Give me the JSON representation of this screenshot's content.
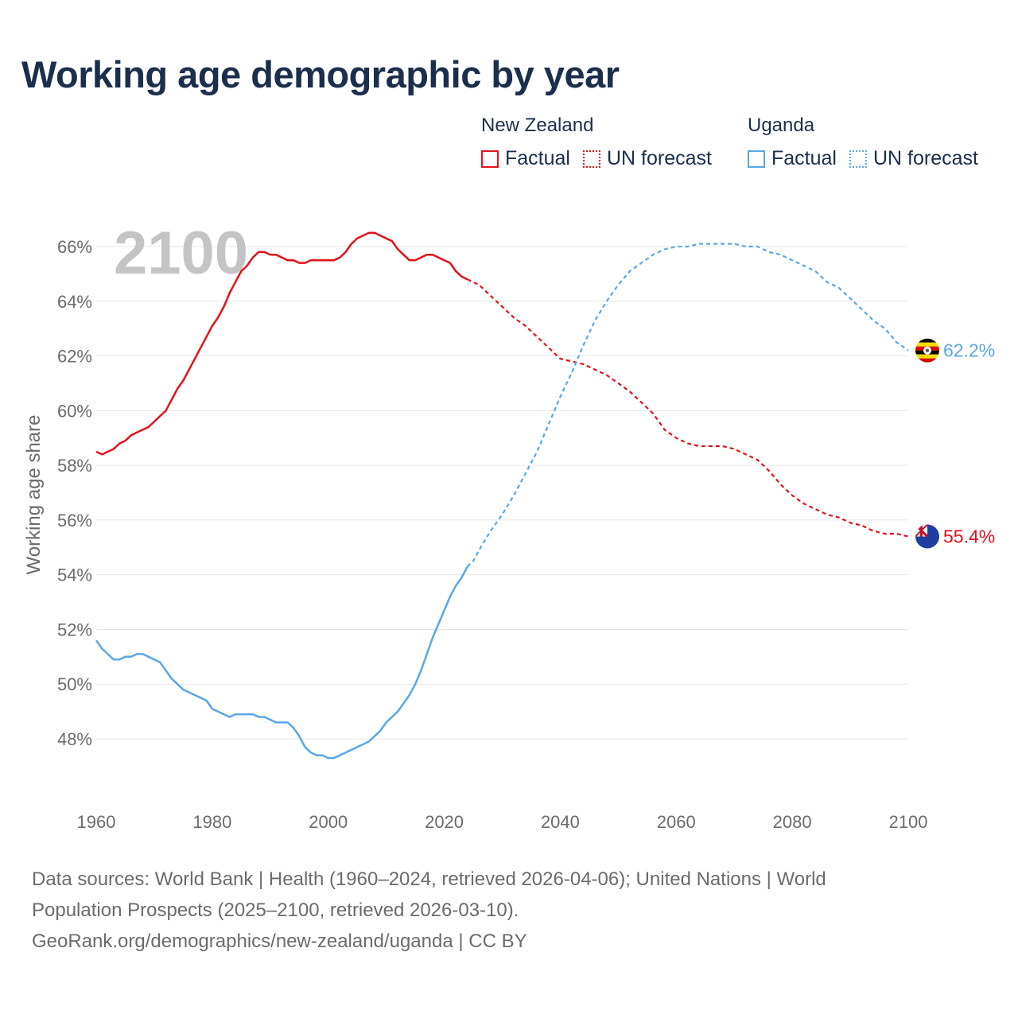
{
  "title": "Working age demographic by year",
  "legend": {
    "groups": [
      {
        "name": "New Zealand",
        "color": "#e3101a",
        "items": [
          "Factual",
          "UN forecast"
        ]
      },
      {
        "name": "Uganda",
        "color": "#5aa6e6",
        "items": [
          "Factual",
          "UN forecast"
        ]
      }
    ]
  },
  "colors": {
    "new_zealand": "#e3101a",
    "uganda": "#5aa6e6",
    "year_label": "#c4c4c4",
    "grid": "#e6e6e6",
    "axis_text": "#6b6b6b"
  },
  "footer": {
    "line1": "Data sources: World Bank | Health (1960–2024, retrieved 2026-04-06); United Nations | World",
    "line2": "Population Prospects (2025–2100, retrieved 2026-03-10).",
    "line3": "GeoRank.org/demographics/new-zealand/uganda | CC BY"
  },
  "chart_data": {
    "type": "line",
    "current_year_label": "2100",
    "ylabel": "Working age share",
    "xlim": [
      1960,
      2100
    ],
    "ylim": [
      46,
      67
    ],
    "x_ticks": [
      "1960",
      "1980",
      "2000",
      "2020",
      "2040",
      "2060",
      "2080",
      "2100"
    ],
    "y_ticks": [
      "48%",
      "50%",
      "52%",
      "54%",
      "56%",
      "58%",
      "60%",
      "62%",
      "64%",
      "66%"
    ],
    "grid": true,
    "factual_end_year": 2024,
    "series": [
      {
        "name": "New Zealand",
        "flag": "new-zealand-flag-icon",
        "end_label": "55.4%",
        "points": [
          [
            1960,
            58.5
          ],
          [
            1961,
            58.4
          ],
          [
            1962,
            58.5
          ],
          [
            1963,
            58.6
          ],
          [
            1964,
            58.8
          ],
          [
            1965,
            58.9
          ],
          [
            1966,
            59.1
          ],
          [
            1968,
            59.3
          ],
          [
            1969,
            59.4
          ],
          [
            1970,
            59.6
          ],
          [
            1972,
            60.0
          ],
          [
            1973,
            60.4
          ],
          [
            1974,
            60.8
          ],
          [
            1975,
            61.1
          ],
          [
            1976,
            61.5
          ],
          [
            1978,
            62.3
          ],
          [
            1980,
            63.1
          ],
          [
            1981,
            63.4
          ],
          [
            1982,
            63.8
          ],
          [
            1983,
            64.3
          ],
          [
            1984,
            64.7
          ],
          [
            1985,
            65.1
          ],
          [
            1986,
            65.3
          ],
          [
            1987,
            65.6
          ],
          [
            1988,
            65.8
          ],
          [
            1989,
            65.8
          ],
          [
            1990,
            65.7
          ],
          [
            1991,
            65.7
          ],
          [
            1992,
            65.6
          ],
          [
            1993,
            65.5
          ],
          [
            1994,
            65.5
          ],
          [
            1995,
            65.4
          ],
          [
            1996,
            65.4
          ],
          [
            1997,
            65.5
          ],
          [
            1998,
            65.5
          ],
          [
            1999,
            65.5
          ],
          [
            2000,
            65.5
          ],
          [
            2001,
            65.5
          ],
          [
            2002,
            65.6
          ],
          [
            2003,
            65.8
          ],
          [
            2004,
            66.1
          ],
          [
            2005,
            66.3
          ],
          [
            2006,
            66.4
          ],
          [
            2007,
            66.5
          ],
          [
            2008,
            66.5
          ],
          [
            2009,
            66.4
          ],
          [
            2010,
            66.3
          ],
          [
            2011,
            66.2
          ],
          [
            2012,
            65.9
          ],
          [
            2013,
            65.7
          ],
          [
            2014,
            65.5
          ],
          [
            2015,
            65.5
          ],
          [
            2016,
            65.6
          ],
          [
            2017,
            65.7
          ],
          [
            2018,
            65.7
          ],
          [
            2019,
            65.6
          ],
          [
            2020,
            65.5
          ],
          [
            2021,
            65.4
          ],
          [
            2022,
            65.1
          ],
          [
            2023,
            64.9
          ],
          [
            2024,
            64.8
          ],
          [
            2025,
            64.7
          ],
          [
            2026,
            64.6
          ],
          [
            2028,
            64.2
          ],
          [
            2030,
            63.8
          ],
          [
            2032,
            63.4
          ],
          [
            2034,
            63.1
          ],
          [
            2036,
            62.7
          ],
          [
            2038,
            62.3
          ],
          [
            2040,
            61.9
          ],
          [
            2042,
            61.8
          ],
          [
            2044,
            61.7
          ],
          [
            2046,
            61.5
          ],
          [
            2048,
            61.3
          ],
          [
            2050,
            61.0
          ],
          [
            2052,
            60.7
          ],
          [
            2054,
            60.3
          ],
          [
            2056,
            59.9
          ],
          [
            2058,
            59.3
          ],
          [
            2060,
            59.0
          ],
          [
            2062,
            58.8
          ],
          [
            2064,
            58.7
          ],
          [
            2066,
            58.7
          ],
          [
            2068,
            58.7
          ],
          [
            2070,
            58.6
          ],
          [
            2072,
            58.4
          ],
          [
            2074,
            58.2
          ],
          [
            2076,
            57.8
          ],
          [
            2078,
            57.3
          ],
          [
            2080,
            56.9
          ],
          [
            2082,
            56.6
          ],
          [
            2084,
            56.4
          ],
          [
            2086,
            56.2
          ],
          [
            2088,
            56.1
          ],
          [
            2090,
            55.9
          ],
          [
            2092,
            55.8
          ],
          [
            2094,
            55.6
          ],
          [
            2096,
            55.5
          ],
          [
            2098,
            55.5
          ],
          [
            2100,
            55.4
          ]
        ]
      },
      {
        "name": "Uganda",
        "flag": "uganda-flag-icon",
        "end_label": "62.2%",
        "points": [
          [
            1960,
            51.6
          ],
          [
            1961,
            51.3
          ],
          [
            1962,
            51.1
          ],
          [
            1963,
            50.9
          ],
          [
            1964,
            50.9
          ],
          [
            1965,
            51.0
          ],
          [
            1966,
            51.0
          ],
          [
            1967,
            51.1
          ],
          [
            1968,
            51.1
          ],
          [
            1969,
            51.0
          ],
          [
            1970,
            50.9
          ],
          [
            1971,
            50.8
          ],
          [
            1972,
            50.5
          ],
          [
            1973,
            50.2
          ],
          [
            1974,
            50.0
          ],
          [
            1975,
            49.8
          ],
          [
            1976,
            49.7
          ],
          [
            1977,
            49.6
          ],
          [
            1978,
            49.5
          ],
          [
            1979,
            49.4
          ],
          [
            1980,
            49.1
          ],
          [
            1981,
            49.0
          ],
          [
            1982,
            48.9
          ],
          [
            1983,
            48.8
          ],
          [
            1984,
            48.9
          ],
          [
            1985,
            48.9
          ],
          [
            1986,
            48.9
          ],
          [
            1987,
            48.9
          ],
          [
            1988,
            48.8
          ],
          [
            1989,
            48.8
          ],
          [
            1990,
            48.7
          ],
          [
            1991,
            48.6
          ],
          [
            1992,
            48.6
          ],
          [
            1993,
            48.6
          ],
          [
            1994,
            48.4
          ],
          [
            1995,
            48.1
          ],
          [
            1996,
            47.7
          ],
          [
            1997,
            47.5
          ],
          [
            1998,
            47.4
          ],
          [
            1999,
            47.4
          ],
          [
            2000,
            47.3
          ],
          [
            2001,
            47.3
          ],
          [
            2002,
            47.4
          ],
          [
            2003,
            47.5
          ],
          [
            2004,
            47.6
          ],
          [
            2005,
            47.7
          ],
          [
            2006,
            47.8
          ],
          [
            2007,
            47.9
          ],
          [
            2008,
            48.1
          ],
          [
            2009,
            48.3
          ],
          [
            2010,
            48.6
          ],
          [
            2011,
            48.8
          ],
          [
            2012,
            49.0
          ],
          [
            2013,
            49.3
          ],
          [
            2014,
            49.6
          ],
          [
            2015,
            50.0
          ],
          [
            2016,
            50.5
          ],
          [
            2017,
            51.1
          ],
          [
            2018,
            51.7
          ],
          [
            2019,
            52.2
          ],
          [
            2020,
            52.7
          ],
          [
            2021,
            53.2
          ],
          [
            2022,
            53.6
          ],
          [
            2023,
            53.9
          ],
          [
            2024,
            54.3
          ],
          [
            2025,
            54.5
          ],
          [
            2026,
            54.9
          ],
          [
            2028,
            55.6
          ],
          [
            2030,
            56.2
          ],
          [
            2032,
            56.9
          ],
          [
            2034,
            57.7
          ],
          [
            2036,
            58.5
          ],
          [
            2038,
            59.5
          ],
          [
            2040,
            60.5
          ],
          [
            2042,
            61.4
          ],
          [
            2044,
            62.4
          ],
          [
            2046,
            63.3
          ],
          [
            2048,
            64.0
          ],
          [
            2050,
            64.6
          ],
          [
            2052,
            65.1
          ],
          [
            2054,
            65.4
          ],
          [
            2056,
            65.7
          ],
          [
            2058,
            65.9
          ],
          [
            2060,
            66.0
          ],
          [
            2062,
            66.0
          ],
          [
            2064,
            66.1
          ],
          [
            2066,
            66.1
          ],
          [
            2068,
            66.1
          ],
          [
            2070,
            66.1
          ],
          [
            2072,
            66.0
          ],
          [
            2074,
            66.0
          ],
          [
            2076,
            65.8
          ],
          [
            2078,
            65.7
          ],
          [
            2080,
            65.5
          ],
          [
            2082,
            65.3
          ],
          [
            2084,
            65.1
          ],
          [
            2086,
            64.7
          ],
          [
            2088,
            64.5
          ],
          [
            2090,
            64.1
          ],
          [
            2092,
            63.7
          ],
          [
            2094,
            63.3
          ],
          [
            2096,
            63.0
          ],
          [
            2098,
            62.5
          ],
          [
            2100,
            62.2
          ]
        ]
      }
    ]
  }
}
